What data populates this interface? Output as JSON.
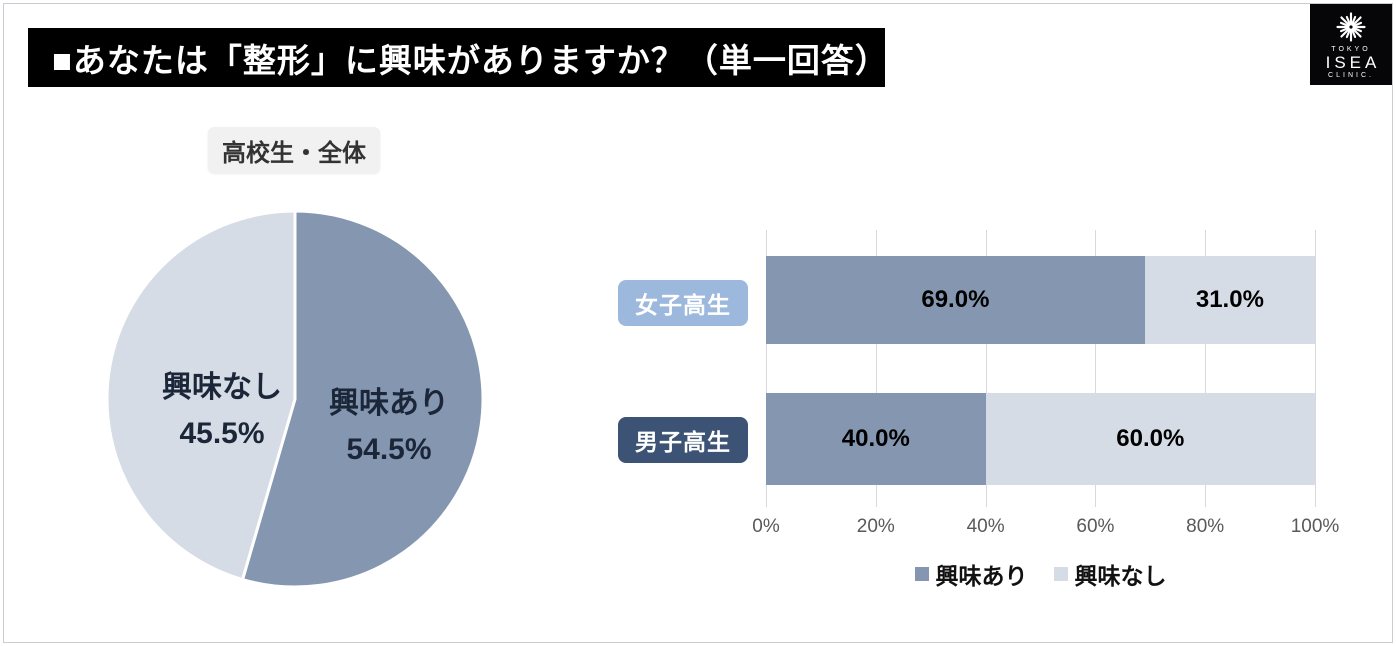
{
  "page": {
    "title": "■あなたは「整形」に興味がありますか？（単一回答）"
  },
  "logo": {
    "top_text": "TOKYO",
    "name_text": "ISEA",
    "bottom_text": "CLINIC."
  },
  "pie_section": {
    "chip_label": "高校生・全体"
  },
  "colors": {
    "series_interested": "#8496b0",
    "series_not_interested": "#d6dce5",
    "chip_girls_bg": "#9cb8dc",
    "chip_boys_bg": "#3c5375",
    "title_bar_bg": "#000000",
    "gridline": "#d9d9d9",
    "pie_text": "#1b2639"
  },
  "chart_data": [
    {
      "type": "pie",
      "title": "高校生・全体",
      "start_angle_deg": 0,
      "direction": "clockwise",
      "slices": [
        {
          "label": "興味あり",
          "value": 54.5,
          "display": "54.5%",
          "color": "#8496b0"
        },
        {
          "label": "興味なし",
          "value": 45.5,
          "display": "45.5%",
          "color": "#d6dce5"
        }
      ]
    },
    {
      "type": "bar",
      "orientation": "horizontal-stacked",
      "categories": [
        "女子高生",
        "男子高生"
      ],
      "category_chip_colors": [
        "#9cb8dc",
        "#3c5375"
      ],
      "series": [
        {
          "name": "興味あり",
          "color": "#8496b0",
          "values": [
            69.0,
            40.0
          ],
          "labels": [
            "69.0%",
            "40.0%"
          ]
        },
        {
          "name": "興味なし",
          "color": "#d6dce5",
          "values": [
            31.0,
            60.0
          ],
          "labels": [
            "31.0%",
            "60.0%"
          ]
        }
      ],
      "xlim": [
        0,
        100
      ],
      "x_ticks": [
        "0%",
        "20%",
        "40%",
        "60%",
        "80%",
        "100%"
      ],
      "grid": true,
      "legend_position": "bottom"
    }
  ]
}
